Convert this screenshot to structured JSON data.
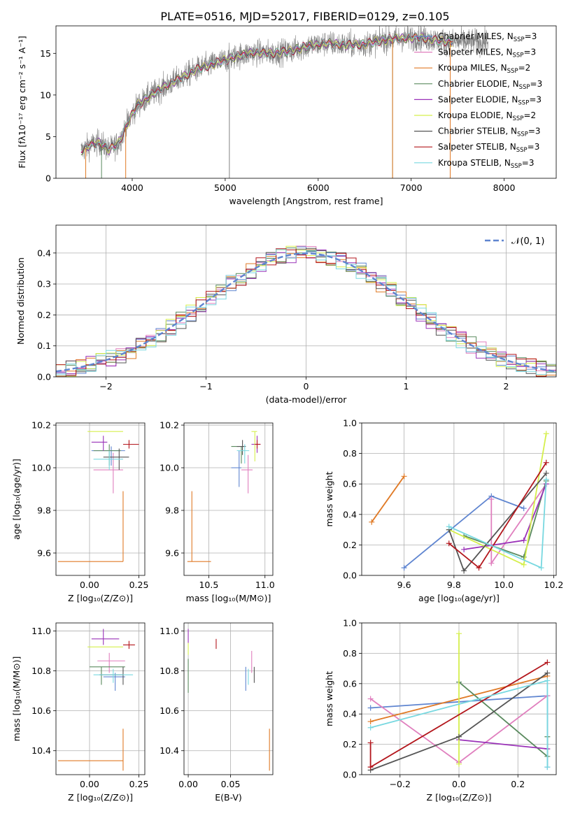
{
  "figure_title": "PLATE=0516, MJD=52017, FIBERID=0129, z=0.105",
  "models": [
    {
      "name": "Chabrier MILES",
      "nssp": "3",
      "color": "#5f85d0"
    },
    {
      "name": "Salpeter MILES",
      "nssp": "3",
      "color": "#e07fbe"
    },
    {
      "name": "Kroupa MILES",
      "nssp": "2",
      "color": "#e07a26"
    },
    {
      "name": "Chabrier ELODIE",
      "nssp": "3",
      "color": "#5a8a5e"
    },
    {
      "name": "Salpeter ELODIE",
      "nssp": "3",
      "color": "#9a32b8"
    },
    {
      "name": "Kroupa ELODIE",
      "nssp": "2",
      "color": "#d5ef4c"
    },
    {
      "name": "Chabrier STELIB",
      "nssp": "3",
      "color": "#555555"
    },
    {
      "name": "Salpeter STELIB",
      "nssp": "3",
      "color": "#b3161c"
    },
    {
      "name": "Kroupa STELIB",
      "nssp": "3",
      "color": "#78d8e0"
    }
  ],
  "chart_data": [
    {
      "id": "spectrum",
      "type": "line",
      "title": "PLATE=0516, MJD=52017, FIBERID=0129, z=0.105",
      "xlabel": "wavelength [Angstrom, rest frame]",
      "ylabel": "Flux [fλ10⁻¹⁷ erg cm⁻² s⁻¹ A⁻¹]",
      "xlim": [
        3180,
        8560
      ],
      "ylim": [
        0,
        18.3
      ],
      "xticks": [
        4000,
        5000,
        6000,
        7000,
        8000
      ],
      "yticks": [
        0,
        5,
        10,
        15
      ],
      "legend": "top-right",
      "data_color": "#808080",
      "continuum_knots": {
        "x": [
          3450,
          3550,
          3650,
          3750,
          3850,
          3950,
          4050,
          4150,
          4300,
          4500,
          4700,
          4900,
          5100,
          5300,
          5500,
          5700,
          5900,
          6100,
          6300,
          6500,
          6700,
          6900,
          7100,
          7300,
          7450
        ],
        "y": [
          3.3,
          4.0,
          4.3,
          3.4,
          4.2,
          6.6,
          8.7,
          9.6,
          10.7,
          11.9,
          13.1,
          13.8,
          14.6,
          15.1,
          15.0,
          15.3,
          15.9,
          16.2,
          16.0,
          16.1,
          16.6,
          16.8,
          16.9,
          16.5,
          16.4
        ]
      },
      "data_extends_to": 7830,
      "vertical_lines": [
        {
          "x": 3500,
          "color": "#e07a26"
        },
        {
          "x": 3670,
          "color": "#5a8a5e"
        },
        {
          "x": 3930,
          "color": "#e07a26"
        },
        {
          "x": 5045,
          "color": "#808080"
        },
        {
          "x": 6800,
          "color": "#5a8a5e"
        },
        {
          "x": 6800,
          "color": "#e07a26"
        },
        {
          "x": 7420,
          "color": "#e07a26"
        }
      ]
    },
    {
      "id": "residual_hist",
      "type": "histogram",
      "xlabel": "(data-model)/error",
      "ylabel": "Normed distribution",
      "xlim": [
        -2.5,
        2.5
      ],
      "ylim": [
        0,
        0.49
      ],
      "xticks": [
        -2,
        -1,
        0,
        1,
        2
      ],
      "yticks": [
        0.0,
        0.1,
        0.2,
        0.3,
        0.4
      ],
      "bin_width": 0.1,
      "reference": {
        "name": "𝒩(0, 1)",
        "mean": 0,
        "sigma": 1,
        "color": "#5f85d0"
      },
      "legend": "top-right"
    },
    {
      "id": "age_vs_Z",
      "type": "errorbar",
      "xlabel": "Z [log₁₀(Z/Z⊙)]",
      "ylabel": "age  [log₁₀(age/yr)]",
      "xlim": [
        -0.17,
        0.28
      ],
      "ylim": [
        9.495,
        10.21
      ],
      "xticks": [
        0.0,
        0.25
      ],
      "yticks": [
        9.6,
        9.8,
        10.0,
        10.2
      ],
      "points": [
        {
          "model": 0,
          "x": 0.11,
          "xerr": [
            0.1,
            0.07
          ],
          "y": 10.08,
          "yerr": [
            0.07,
            0.02
          ]
        },
        {
          "model": 1,
          "x": 0.12,
          "xerr": [
            0.1,
            0.05
          ],
          "y": 9.99,
          "yerr": [
            0.11,
            0.08
          ]
        },
        {
          "model": 2,
          "x": 0.17,
          "xerr": [
            0.33,
            0.0
          ],
          "y": 9.56,
          "yerr": [
            0.0,
            0.33
          ]
        },
        {
          "model": 3,
          "x": 0.1,
          "xerr": [
            0.08,
            0.06
          ],
          "y": 10.08,
          "yerr": [
            0.07,
            0.03
          ]
        },
        {
          "model": 4,
          "x": 0.07,
          "xerr": [
            0.06,
            0.02
          ],
          "y": 10.12,
          "yerr": [
            0.04,
            0.03
          ]
        },
        {
          "model": 5,
          "x": 0.05,
          "xerr": [
            0.06,
            0.12
          ],
          "y": 10.17,
          "yerr": [
            0.0,
            0.0
          ]
        },
        {
          "model": 6,
          "x": 0.15,
          "xerr": [
            0.08,
            0.05
          ],
          "y": 10.05,
          "yerr": [
            0.06,
            0.04
          ]
        },
        {
          "model": 7,
          "x": 0.2,
          "xerr": [
            0.03,
            0.05
          ],
          "y": 10.11,
          "yerr": [
            0.02,
            0.02
          ]
        },
        {
          "model": 8,
          "x": 0.1,
          "xerr": [
            0.08,
            0.07
          ],
          "y": 10.04,
          "yerr": [
            0.05,
            0.04
          ]
        }
      ]
    },
    {
      "id": "age_vs_mass",
      "type": "errorbar",
      "xlabel": "mass [log₁₀(M/M⊙)]",
      "xlim": [
        10.28,
        11.07
      ],
      "ylim": [
        9.495,
        10.21
      ],
      "xticks": [
        10.5,
        11.0
      ],
      "yticks": [
        9.6,
        9.8,
        10.0,
        10.2
      ],
      "points": [
        {
          "model": 0,
          "x": 10.77,
          "xerr": [
            0.07,
            0.02
          ],
          "y": 10.0,
          "yerr": [
            0.09,
            0.08
          ]
        },
        {
          "model": 1,
          "x": 10.85,
          "xerr": [
            0.06,
            0.04
          ],
          "y": 9.99,
          "yerr": [
            0.11,
            0.07
          ]
        },
        {
          "model": 2,
          "x": 10.35,
          "xerr": [
            0.04,
            0.17
          ],
          "y": 9.56,
          "yerr": [
            0.0,
            0.33
          ]
        },
        {
          "model": 3,
          "x": 10.79,
          "xerr": [
            0.09,
            0.02
          ],
          "y": 10.1,
          "yerr": [
            0.08,
            0.0
          ]
        },
        {
          "model": 4,
          "x": 10.93,
          "xerr": [
            0.05,
            0.03
          ],
          "y": 10.11,
          "yerr": [
            0.04,
            0.04
          ]
        },
        {
          "model": 5,
          "x": 10.91,
          "xerr": [
            0.03,
            0.02
          ],
          "y": 10.17,
          "yerr": [
            0.14,
            0.0
          ]
        },
        {
          "model": 6,
          "x": 10.8,
          "xerr": [
            0.05,
            0.03
          ],
          "y": 10.1,
          "yerr": [
            0.04,
            0.03
          ]
        },
        {
          "model": 7,
          "x": 10.93,
          "xerr": [
            0.02,
            0.03
          ],
          "y": 10.11,
          "yerr": [
            0.02,
            0.02
          ]
        },
        {
          "model": 8,
          "x": 10.82,
          "xerr": [
            0.07,
            0.04
          ],
          "y": 10.08,
          "yerr": [
            0.06,
            0.03
          ]
        }
      ]
    },
    {
      "id": "weight_vs_age",
      "type": "line",
      "xlabel": "age  [log₁₀(age/yr)]",
      "ylabel": "mass weight",
      "xlim": [
        9.43,
        10.21
      ],
      "ylim": [
        0,
        1.0
      ],
      "xticks": [
        9.6,
        9.8,
        10.0,
        10.2
      ],
      "yticks": [
        0.0,
        0.2,
        0.4,
        0.6,
        0.8,
        1.0
      ],
      "series": [
        {
          "model": 0,
          "x": [
            9.6,
            9.95,
            10.08
          ],
          "y": [
            0.05,
            0.52,
            0.44
          ]
        },
        {
          "model": 1,
          "x": [
            9.95,
            9.95,
            10.17
          ],
          "y": [
            0.5,
            0.08,
            0.6
          ]
        },
        {
          "model": 2,
          "x": [
            9.47,
            9.6
          ],
          "y": [
            0.35,
            0.65
          ]
        },
        {
          "model": 3,
          "x": [
            9.84,
            10.08,
            10.17
          ],
          "y": [
            0.26,
            0.12,
            0.62
          ]
        },
        {
          "model": 4,
          "x": [
            9.84,
            10.08,
            10.17
          ],
          "y": [
            0.17,
            0.23,
            0.6
          ]
        },
        {
          "model": 5,
          "x": [
            9.78,
            10.08,
            10.17
          ],
          "y": [
            0.3,
            0.07,
            0.93
          ]
        },
        {
          "model": 6,
          "x": [
            9.78,
            9.84,
            10.17
          ],
          "y": [
            0.3,
            0.03,
            0.67
          ]
        },
        {
          "model": 7,
          "x": [
            9.78,
            9.9,
            10.17
          ],
          "y": [
            0.21,
            0.05,
            0.74
          ]
        },
        {
          "model": 8,
          "x": [
            9.78,
            10.15,
            10.17
          ],
          "y": [
            0.32,
            0.05,
            0.63
          ]
        }
      ]
    },
    {
      "id": "mass_vs_Z",
      "type": "errorbar",
      "xlabel": "Z [log₁₀(Z/Z⊙)]",
      "ylabel": "mass [log₁₀(M/M⊙)]",
      "xlim": [
        -0.17,
        0.28
      ],
      "ylim": [
        10.28,
        11.04
      ],
      "xticks": [
        0.0,
        0.25
      ],
      "yticks": [
        10.4,
        10.6,
        10.8,
        11.0
      ],
      "points": [
        {
          "model": 0,
          "x": 0.13,
          "xerr": [
            0.06,
            0.05
          ],
          "y": 10.77,
          "yerr": [
            0.07,
            0.02
          ]
        },
        {
          "model": 1,
          "x": 0.1,
          "xerr": [
            0.06,
            0.08
          ],
          "y": 10.85,
          "yerr": [
            0.06,
            0.04
          ]
        },
        {
          "model": 2,
          "x": 0.17,
          "xerr": [
            0.33,
            0.0
          ],
          "y": 10.35,
          "yerr": [
            0.05,
            0.16
          ]
        },
        {
          "model": 3,
          "x": 0.06,
          "xerr": [
            0.06,
            0.12
          ],
          "y": 10.82,
          "yerr": [
            0.09,
            0.0
          ]
        },
        {
          "model": 4,
          "x": 0.07,
          "xerr": [
            0.06,
            0.08
          ],
          "y": 10.96,
          "yerr": [
            0.03,
            0.05
          ]
        },
        {
          "model": 5,
          "x": 0.05,
          "xerr": [
            0.06,
            0.12
          ],
          "y": 10.92,
          "yerr": [
            0.0,
            0.0
          ]
        },
        {
          "model": 6,
          "x": 0.17,
          "xerr": [
            0.12,
            0.0
          ],
          "y": 10.78,
          "yerr": [
            0.05,
            0.04
          ]
        },
        {
          "model": 7,
          "x": 0.2,
          "xerr": [
            0.03,
            0.03
          ],
          "y": 10.93,
          "yerr": [
            0.02,
            0.02
          ]
        },
        {
          "model": 8,
          "x": 0.12,
          "xerr": [
            0.1,
            0.1
          ],
          "y": 10.78,
          "yerr": [
            0.04,
            0.03
          ]
        }
      ]
    },
    {
      "id": "mass_vs_ebv",
      "type": "errorbar",
      "xlabel": "E(B-V)",
      "xlim": [
        -0.005,
        0.1
      ],
      "ylim": [
        10.28,
        11.04
      ],
      "xticks": [
        0.0,
        0.05
      ],
      "yticks": [
        10.4,
        10.6,
        10.8,
        11.0
      ],
      "points": [
        {
          "model": 0,
          "x": 0.068,
          "xerr": [
            0,
            0
          ],
          "y": 10.77,
          "yerr": [
            0.07,
            0.05
          ]
        },
        {
          "model": 1,
          "x": 0.075,
          "xerr": [
            0,
            0
          ],
          "y": 10.85,
          "yerr": [
            0.06,
            0.05
          ]
        },
        {
          "model": 2,
          "x": 0.096,
          "xerr": [
            0,
            0
          ],
          "y": 10.35,
          "yerr": [
            0.05,
            0.16
          ]
        },
        {
          "model": 3,
          "x": 0.0,
          "xerr": [
            0,
            0
          ],
          "y": 10.82,
          "yerr": [
            0.13,
            0.04
          ]
        },
        {
          "model": 4,
          "x": 0.0,
          "xerr": [
            0,
            0
          ],
          "y": 10.96,
          "yerr": [
            0.02,
            0.05
          ]
        },
        {
          "model": 5,
          "x": 0.0,
          "xerr": [
            0,
            0
          ],
          "y": 10.92,
          "yerr": [
            0.04,
            0.02
          ]
        },
        {
          "model": 6,
          "x": 0.078,
          "xerr": [
            0,
            0
          ],
          "y": 10.78,
          "yerr": [
            0.04,
            0.04
          ]
        },
        {
          "model": 7,
          "x": 0.033,
          "xerr": [
            0,
            0
          ],
          "y": 10.93,
          "yerr": [
            0.02,
            0.03
          ]
        },
        {
          "model": 8,
          "x": 0.071,
          "xerr": [
            0,
            0
          ],
          "y": 10.78,
          "yerr": [
            0.05,
            0.03
          ]
        }
      ]
    },
    {
      "id": "weight_vs_Z",
      "type": "line",
      "xlabel": "Z [log₁₀(Z/Z⊙)]",
      "ylabel": "mass weight",
      "xlim": [
        -0.33,
        0.33
      ],
      "ylim": [
        0,
        1.0
      ],
      "xticks": [
        -0.2,
        0.0,
        0.2
      ],
      "yticks": [
        0.0,
        0.2,
        0.4,
        0.6,
        0.8,
        1.0
      ],
      "series": [
        {
          "model": 0,
          "x": [
            -0.3,
            0.3,
            0.3
          ],
          "y": [
            0.44,
            0.52,
            0.05
          ]
        },
        {
          "model": 1,
          "x": [
            -0.3,
            0.0,
            0.3
          ],
          "y": [
            0.5,
            0.08,
            0.52
          ]
        },
        {
          "model": 2,
          "x": [
            -0.3,
            0.3
          ],
          "y": [
            0.35,
            0.65
          ]
        },
        {
          "model": 3,
          "x": [
            0.0,
            0.3,
            0.3
          ],
          "y": [
            0.61,
            0.12,
            0.25
          ]
        },
        {
          "model": 4,
          "x": [
            0.0,
            0.3
          ],
          "y": [
            0.23,
            0.17
          ]
        },
        {
          "model": 5,
          "x": [
            0.0,
            0.0
          ],
          "y": [
            0.93,
            0.07
          ]
        },
        {
          "model": 6,
          "x": [
            -0.3,
            0.0,
            0.3
          ],
          "y": [
            0.03,
            0.25,
            0.67
          ]
        },
        {
          "model": 7,
          "x": [
            -0.3,
            -0.3,
            0.3
          ],
          "y": [
            0.21,
            0.05,
            0.74
          ]
        },
        {
          "model": 8,
          "x": [
            -0.3,
            0.3,
            0.3
          ],
          "y": [
            0.31,
            0.62,
            0.05
          ]
        }
      ]
    }
  ]
}
